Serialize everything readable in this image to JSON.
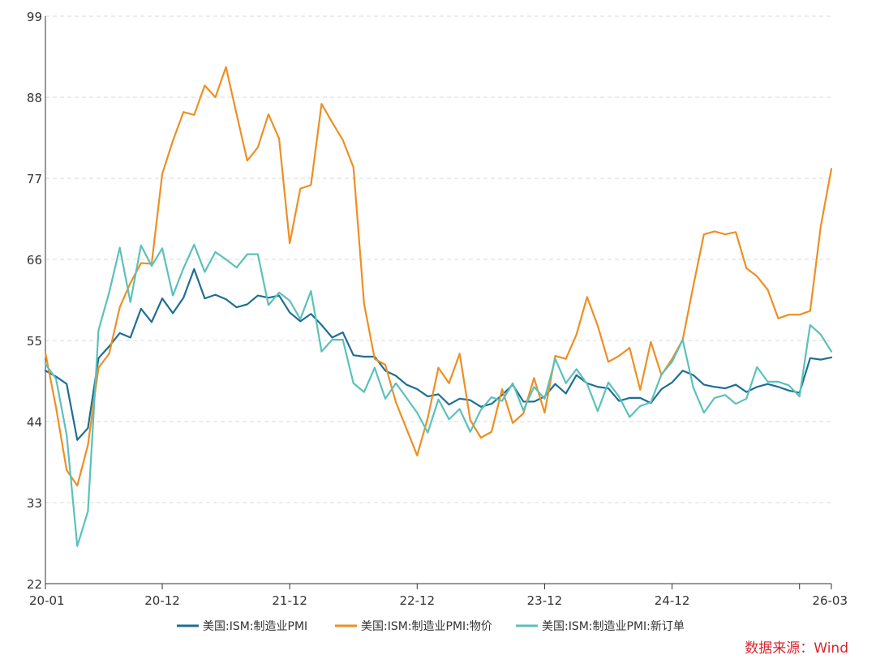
{
  "chart_data": {
    "type": "line",
    "ylim": [
      22,
      99
    ],
    "yticks": [
      22,
      33,
      44,
      55,
      66,
      77,
      88,
      99
    ],
    "x_start": "2020-01",
    "x_end": "2026-03",
    "xticks": [
      "20-01",
      "20-12",
      "21-12",
      "22-12",
      "23-12",
      "24-12",
      "26-03"
    ],
    "grid": true,
    "legend_position": "bottom",
    "series": [
      {
        "name": "美国:ISM:制造业PMI",
        "color": "#1f6e94",
        "values": [
          50.9,
          50.1,
          49.1,
          41.5,
          43.1,
          52.6,
          54.2,
          56.0,
          55.4,
          59.3,
          57.5,
          60.7,
          58.7,
          60.8,
          64.7,
          60.7,
          61.2,
          60.6,
          59.5,
          59.9,
          61.1,
          60.8,
          61.1,
          58.8,
          57.6,
          58.6,
          57.1,
          55.4,
          56.1,
          53.0,
          52.8,
          52.8,
          50.9,
          50.2,
          49.0,
          48.4,
          47.4,
          47.7,
          46.3,
          47.1,
          46.9,
          46.0,
          46.4,
          47.6,
          49.0,
          46.7,
          46.7,
          47.4,
          49.1,
          47.8,
          50.3,
          49.2,
          48.7,
          48.5,
          46.8,
          47.2,
          47.2,
          46.5,
          48.4,
          49.3,
          50.9,
          50.3,
          49.0,
          48.7,
          48.5,
          49.0,
          48.0,
          48.7,
          49.1,
          48.7,
          48.2,
          47.9,
          52.6,
          52.4,
          52.7
        ]
      },
      {
        "name": "美国:ISM:制造业PMI:物价",
        "color": "#ee8f23",
        "values": [
          53.3,
          45.9,
          37.4,
          35.3,
          40.8,
          51.3,
          53.2,
          59.5,
          62.8,
          65.5,
          65.4,
          77.6,
          82.1,
          86.0,
          85.6,
          89.6,
          88.0,
          92.1,
          85.7,
          79.4,
          81.2,
          85.7,
          82.4,
          68.2,
          75.6,
          76.1,
          87.1,
          84.6,
          82.2,
          78.5,
          60.0,
          52.5,
          51.7,
          46.6,
          43.0,
          39.4,
          44.5,
          51.3,
          49.2,
          53.2,
          44.2,
          41.8,
          42.6,
          48.4,
          43.8,
          45.1,
          49.9,
          45.2,
          52.9,
          52.5,
          55.8,
          60.9,
          57.0,
          52.1,
          52.9,
          54.0,
          48.3,
          54.8,
          50.3,
          52.5,
          55.1,
          62.4,
          69.4,
          69.8,
          69.4,
          69.7,
          64.8,
          63.7,
          61.9,
          58.0,
          58.5,
          58.5,
          59.0,
          70.5,
          78.3
        ]
      },
      {
        "name": "美国:ISM:制造业PMI:新订单",
        "color": "#5bc1bb",
        "values": [
          51.8,
          49.8,
          42.2,
          27.1,
          31.8,
          56.4,
          61.5,
          67.6,
          60.2,
          67.9,
          65.1,
          67.5,
          61.1,
          64.8,
          68.0,
          64.3,
          67.0,
          66.0,
          64.9,
          66.7,
          66.7,
          59.8,
          61.5,
          60.4,
          57.9,
          61.7,
          53.5,
          55.1,
          55.1,
          49.2,
          48.0,
          51.3,
          47.1,
          49.2,
          47.2,
          45.2,
          42.5,
          47.0,
          44.3,
          45.7,
          42.6,
          45.6,
          47.3,
          46.8,
          49.2,
          45.5,
          48.7,
          47.1,
          52.5,
          49.2,
          51.1,
          49.1,
          45.4,
          49.3,
          47.4,
          44.6,
          46.1,
          46.6,
          50.4,
          52.1,
          55.1,
          48.6,
          45.2,
          47.2,
          47.6,
          46.4,
          47.1,
          51.4,
          49.4,
          49.4,
          48.9,
          47.4,
          57.1,
          55.8,
          53.5
        ]
      }
    ]
  },
  "source_note": "数据来源：Wind"
}
